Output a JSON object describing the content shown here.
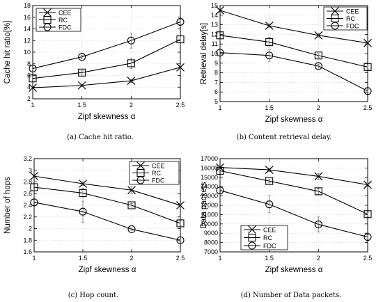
{
  "chart_data": [
    {
      "type": "line",
      "caption": "(a)  Cache hit ratio.",
      "xlabel": "Zipf skewness α",
      "ylabel": "Cache hit ratio[%]",
      "x": [
        1,
        1.5,
        2,
        2.5
      ],
      "x_ticks": [
        "1",
        "1.5",
        "2",
        "2.5"
      ],
      "xlim": [
        1,
        2.5
      ],
      "ylim": [
        2,
        18
      ],
      "y_ticks": [
        2,
        4,
        6,
        8,
        10,
        12,
        14,
        16,
        18
      ],
      "grid": true,
      "legend_position": "top-left",
      "series": [
        {
          "name": "CEE",
          "marker": "x",
          "values": [
            3.9,
            4.3,
            5.1,
            7.4
          ],
          "err": [
            0,
            0.2,
            0.3,
            0.4
          ]
        },
        {
          "name": "RC",
          "marker": "square",
          "values": [
            5.5,
            6.5,
            8.1,
            12.2
          ],
          "err": [
            0,
            0.3,
            0.9,
            0.6
          ]
        },
        {
          "name": "FDC",
          "marker": "circle",
          "values": [
            7.2,
            9.2,
            12.0,
            15.2
          ],
          "err": [
            0,
            0.3,
            1.3,
            0.4
          ]
        }
      ]
    },
    {
      "type": "line",
      "caption": "(b)  Content retrieval delay.",
      "xlabel": "Zipf skewness α",
      "ylabel": "Retrieval delay[s]",
      "x": [
        1,
        1.5,
        2,
        2.5
      ],
      "x_ticks": [
        "1",
        "1.5",
        "2",
        "2.5"
      ],
      "xlim": [
        1,
        2.5
      ],
      "ylim": [
        5,
        15
      ],
      "y_ticks": [
        5,
        6,
        7,
        8,
        9,
        10,
        11,
        12,
        13,
        14,
        15
      ],
      "grid": true,
      "legend_position": "top-right",
      "series": [
        {
          "name": "CEE",
          "marker": "x",
          "values": [
            14.5,
            12.9,
            11.9,
            11.1
          ],
          "err": [
            0,
            0.2,
            0.2,
            0.2
          ]
        },
        {
          "name": "RC",
          "marker": "square",
          "values": [
            11.9,
            11.2,
            9.8,
            8.6
          ],
          "err": [
            0,
            0.5,
            0.2,
            0.2
          ]
        },
        {
          "name": "FDC",
          "marker": "circle",
          "values": [
            10.1,
            9.8,
            8.7,
            6.1
          ],
          "err": [
            0,
            0.6,
            0.2,
            0.2
          ]
        }
      ]
    },
    {
      "type": "line",
      "caption": "(c)  Hop count.",
      "xlabel": "Zipf skewness α",
      "ylabel": "Number of hops",
      "x": [
        1,
        1.5,
        2,
        2.5
      ],
      "x_ticks": [
        "1",
        "1.5",
        "2",
        "2.5"
      ],
      "xlim": [
        1,
        2.5
      ],
      "ylim": [
        1.6,
        3.2
      ],
      "y_ticks": [
        "1.6",
        "1.8",
        "2",
        "2.2",
        "2.4",
        "2.6",
        "2.8",
        "3",
        "3.2"
      ],
      "grid": true,
      "legend_position": "top-right",
      "series": [
        {
          "name": "CEE",
          "marker": "x",
          "values": [
            2.9,
            2.77,
            2.66,
            2.4
          ],
          "err": [
            0,
            0.03,
            0.06,
            0.03
          ]
        },
        {
          "name": "RC",
          "marker": "square",
          "values": [
            2.71,
            2.61,
            2.4,
            2.09
          ],
          "err": [
            0,
            0.08,
            0.03,
            0.04
          ]
        },
        {
          "name": "FDC",
          "marker": "circle",
          "values": [
            2.45,
            2.29,
            1.99,
            1.8
          ],
          "err": [
            0,
            0.18,
            0.02,
            0.02
          ]
        }
      ]
    },
    {
      "type": "line",
      "caption": "(d)  Number of Data packets.",
      "xlabel": "Zipf skewness α",
      "ylabel": "Data packets",
      "x": [
        1,
        1.5,
        2,
        2.5
      ],
      "x_ticks": [
        "1",
        "1.5",
        "2",
        "2.5"
      ],
      "xlim": [
        1,
        2.5
      ],
      "ylim": [
        7000,
        17000
      ],
      "y_ticks": [
        7000,
        8000,
        9000,
        10000,
        11000,
        12000,
        13000,
        14000,
        15000,
        16000,
        17000
      ],
      "grid": true,
      "legend_position": "bottom-left",
      "series": [
        {
          "name": "CEE",
          "marker": "x",
          "values": [
            16050,
            15800,
            15100,
            14200
          ],
          "err": [
            0,
            200,
            300,
            200
          ]
        },
        {
          "name": "RC",
          "marker": "square",
          "values": [
            15700,
            14600,
            13500,
            11050
          ],
          "err": [
            0,
            200,
            300,
            200
          ]
        },
        {
          "name": "FDC",
          "marker": "circle",
          "values": [
            13600,
            12100,
            9950,
            8600
          ],
          "err": [
            0,
            900,
            800,
            200
          ]
        }
      ]
    }
  ]
}
